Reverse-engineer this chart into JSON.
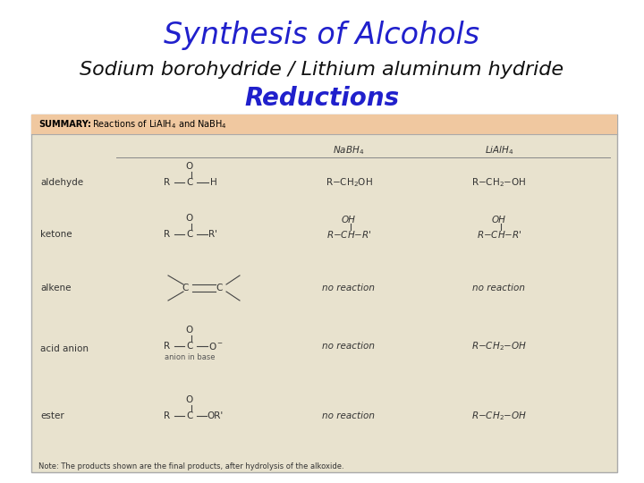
{
  "title": "Synthesis of Alcohols",
  "subtitle1": "Sodium borohydride / Lithium aluminum hydride",
  "subtitle2": "Reductions",
  "title_color": "#2020CC",
  "subtitle1_color": "#111111",
  "subtitle2_color": "#2020CC",
  "bg_color": "#FFFFFF",
  "table_bg": "#E8E2CE",
  "summary_bg": "#F0C8A0",
  "border_color": "#999999",
  "text_color": "#333333"
}
